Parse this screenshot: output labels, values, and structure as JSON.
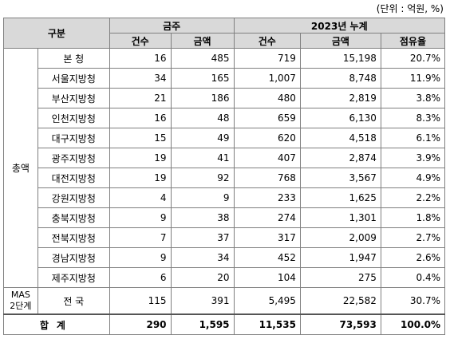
{
  "unit_note": "(단위 : 억원, %)",
  "headers": {
    "category": "구분",
    "this_month": "금주",
    "cumulative": "2023년 누계",
    "count": "건수",
    "amount": "금액",
    "share": "점유율"
  },
  "groups": {
    "total_amount": "총액",
    "mas": "MAS 2단계"
  },
  "rows": [
    {
      "region": "본 청",
      "c1": "16",
      "a1": "485",
      "c2": "719",
      "a2": "15,198",
      "share": "20.7%"
    },
    {
      "region": "서울지방청",
      "c1": "34",
      "a1": "165",
      "c2": "1,007",
      "a2": "8,748",
      "share": "11.9%"
    },
    {
      "region": "부산지방청",
      "c1": "21",
      "a1": "186",
      "c2": "480",
      "a2": "2,819",
      "share": "3.8%"
    },
    {
      "region": "인천지방청",
      "c1": "16",
      "a1": "48",
      "c2": "659",
      "a2": "6,130",
      "share": "8.3%"
    },
    {
      "region": "대구지방청",
      "c1": "15",
      "a1": "49",
      "c2": "620",
      "a2": "4,518",
      "share": "6.1%"
    },
    {
      "region": "광주지방청",
      "c1": "19",
      "a1": "41",
      "c2": "407",
      "a2": "2,874",
      "share": "3.9%"
    },
    {
      "region": "대전지방청",
      "c1": "19",
      "a1": "92",
      "c2": "768",
      "a2": "3,567",
      "share": "4.9%"
    },
    {
      "region": "강원지방청",
      "c1": "4",
      "a1": "9",
      "c2": "233",
      "a2": "1,625",
      "share": "2.2%"
    },
    {
      "region": "충북지방청",
      "c1": "9",
      "a1": "38",
      "c2": "274",
      "a2": "1,301",
      "share": "1.8%"
    },
    {
      "region": "전북지방청",
      "c1": "7",
      "a1": "37",
      "c2": "317",
      "a2": "2,009",
      "share": "2.7%"
    },
    {
      "region": "경남지방청",
      "c1": "9",
      "a1": "34",
      "c2": "452",
      "a2": "1,947",
      "share": "2.6%"
    },
    {
      "region": "제주지방청",
      "c1": "6",
      "a1": "20",
      "c2": "104",
      "a2": "275",
      "share": "0.4%"
    }
  ],
  "mas_row": {
    "region": "전 국",
    "c1": "115",
    "a1": "391",
    "c2": "5,495",
    "a2": "22,582",
    "share": "30.7%"
  },
  "total_row": {
    "label": "합계",
    "c1": "290",
    "a1": "1,595",
    "c2": "11,535",
    "a2": "73,593",
    "share": "100.0%"
  }
}
